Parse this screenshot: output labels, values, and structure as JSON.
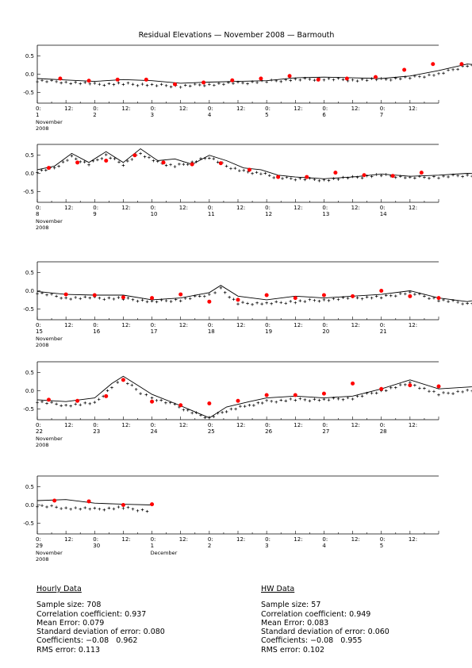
{
  "title": "Residual Elevations — November 2008 — Barmouth",
  "x_tick_labels": [
    "0:",
    "12:"
  ],
  "y_tick_labels": [
    "0.5",
    "0.0",
    "-0.5"
  ],
  "colors": {
    "observed": "#000000",
    "hw": "#ff0000",
    "background": "#ffffff"
  },
  "chart_data": [
    {
      "type": "line",
      "day_numbers": [
        "1",
        "2",
        "3",
        "4",
        "5",
        "6",
        "7"
      ],
      "month_label": "November",
      "year_label": "2008",
      "ylim": [
        -0.8,
        0.8
      ],
      "series": [],
      "model_line": [
        [
          0,
          -0.12
        ],
        [
          0.5,
          -0.16
        ],
        [
          1,
          -0.2
        ],
        [
          1.5,
          -0.15
        ],
        [
          2,
          -0.18
        ],
        [
          2.5,
          -0.25
        ],
        [
          3,
          -0.22
        ],
        [
          3.5,
          -0.2
        ],
        [
          4,
          -0.18
        ],
        [
          4.5,
          -0.1
        ],
        [
          5,
          -0.08
        ],
        [
          5.5,
          -0.1
        ],
        [
          6,
          -0.12
        ],
        [
          6.5,
          -0.05
        ],
        [
          7,
          0.1
        ],
        [
          7.5,
          0.28
        ],
        [
          8,
          0.22
        ]
      ],
      "hourly_obs": [
        [
          0,
          -0.18
        ],
        [
          0.5,
          -0.22
        ],
        [
          1,
          -0.28
        ],
        [
          1.5,
          -0.27
        ],
        [
          2,
          -0.3
        ],
        [
          2.5,
          -0.33
        ],
        [
          3,
          -0.28
        ],
        [
          3.5,
          -0.25
        ],
        [
          4,
          -0.2
        ],
        [
          4.5,
          -0.15
        ],
        [
          5,
          -0.13
        ],
        [
          5.5,
          -0.16
        ],
        [
          6,
          -0.15
        ],
        [
          6.5,
          -0.1
        ],
        [
          7,
          0.0
        ],
        [
          7.5,
          0.25
        ],
        [
          8,
          0.15
        ]
      ],
      "hw_points": [
        [
          0.4,
          -0.12
        ],
        [
          0.9,
          -0.18
        ],
        [
          1.4,
          -0.15
        ],
        [
          1.9,
          -0.15
        ],
        [
          2.4,
          -0.28
        ],
        [
          2.9,
          -0.23
        ],
        [
          3.4,
          -0.17
        ],
        [
          3.9,
          -0.12
        ],
        [
          4.4,
          -0.05
        ],
        [
          4.9,
          -0.15
        ],
        [
          5.4,
          -0.12
        ],
        [
          5.9,
          -0.08
        ],
        [
          6.4,
          0.12
        ],
        [
          6.9,
          0.28
        ],
        [
          7.4,
          0.28
        ]
      ]
    },
    {
      "type": "line",
      "day_numbers": [
        "8",
        "9",
        "10",
        "11",
        "12",
        "13",
        "14"
      ],
      "month_label": "November",
      "year_label": "2008",
      "ylim": [
        -0.8,
        0.8
      ],
      "model_line": [
        [
          0,
          0.1
        ],
        [
          0.3,
          0.2
        ],
        [
          0.6,
          0.55
        ],
        [
          0.9,
          0.3
        ],
        [
          1.2,
          0.6
        ],
        [
          1.5,
          0.3
        ],
        [
          1.8,
          0.68
        ],
        [
          2.1,
          0.35
        ],
        [
          2.4,
          0.4
        ],
        [
          2.7,
          0.25
        ],
        [
          3,
          0.5
        ],
        [
          3.3,
          0.35
        ],
        [
          3.6,
          0.15
        ],
        [
          3.9,
          0.1
        ],
        [
          4.2,
          -0.05
        ],
        [
          4.5,
          -0.1
        ],
        [
          5,
          -0.15
        ],
        [
          5.5,
          -0.1
        ],
        [
          6,
          -0.02
        ],
        [
          6.5,
          -0.08
        ],
        [
          7,
          -0.05
        ],
        [
          7.5,
          0.0
        ],
        [
          8,
          -0.03
        ]
      ],
      "hourly_obs": [
        [
          0,
          0.05
        ],
        [
          0.3,
          0.15
        ],
        [
          0.6,
          0.45
        ],
        [
          0.9,
          0.25
        ],
        [
          1.2,
          0.5
        ],
        [
          1.5,
          0.25
        ],
        [
          1.8,
          0.55
        ],
        [
          2.1,
          0.3
        ],
        [
          2.4,
          0.2
        ],
        [
          2.7,
          0.3
        ],
        [
          3,
          0.45
        ],
        [
          3.3,
          0.2
        ],
        [
          3.6,
          0.05
        ],
        [
          3.9,
          0.0
        ],
        [
          4.2,
          -0.12
        ],
        [
          4.5,
          -0.15
        ],
        [
          5,
          -0.18
        ],
        [
          5.5,
          -0.12
        ],
        [
          6,
          -0.05
        ],
        [
          6.5,
          -0.12
        ],
        [
          7,
          -0.1
        ],
        [
          7.5,
          -0.05
        ],
        [
          8,
          -0.05
        ]
      ],
      "hw_points": [
        [
          0.2,
          0.15
        ],
        [
          0.7,
          0.3
        ],
        [
          1.2,
          0.35
        ],
        [
          1.7,
          0.5
        ],
        [
          2.2,
          0.3
        ],
        [
          2.7,
          0.25
        ],
        [
          3.2,
          0.28
        ],
        [
          3.7,
          0.1
        ],
        [
          4.2,
          -0.1
        ],
        [
          4.7,
          -0.1
        ],
        [
          5.2,
          0.02
        ],
        [
          5.7,
          -0.05
        ],
        [
          6.2,
          -0.07
        ],
        [
          6.7,
          0.02
        ]
      ]
    },
    {
      "type": "line",
      "day_numbers": [
        "15",
        "16",
        "17",
        "18",
        "19",
        "20",
        "21"
      ],
      "month_label": "November",
      "year_label": "2008",
      "ylim": [
        -0.8,
        0.8
      ],
      "model_line": [
        [
          0,
          -0.02
        ],
        [
          0.5,
          -0.1
        ],
        [
          1,
          -0.12
        ],
        [
          1.5,
          -0.12
        ],
        [
          2,
          -0.25
        ],
        [
          2.5,
          -0.2
        ],
        [
          3,
          -0.05
        ],
        [
          3.2,
          0.15
        ],
        [
          3.5,
          -0.15
        ],
        [
          4,
          -0.25
        ],
        [
          4.5,
          -0.15
        ],
        [
          5,
          -0.2
        ],
        [
          5.5,
          -0.15
        ],
        [
          6,
          -0.1
        ],
        [
          6.5,
          0.0
        ],
        [
          7,
          -0.2
        ],
        [
          7.5,
          -0.3
        ],
        [
          8,
          -0.15
        ]
      ],
      "hourly_obs": [
        [
          0,
          -0.05
        ],
        [
          0.5,
          -0.2
        ],
        [
          1,
          -0.2
        ],
        [
          1.5,
          -0.22
        ],
        [
          2,
          -0.3
        ],
        [
          2.5,
          -0.25
        ],
        [
          3,
          -0.1
        ],
        [
          3.2,
          0.05
        ],
        [
          3.5,
          -0.35
        ],
        [
          4,
          -0.35
        ],
        [
          4.5,
          -0.3
        ],
        [
          5,
          -0.25
        ],
        [
          5.5,
          -0.2
        ],
        [
          6,
          -0.18
        ],
        [
          6.5,
          -0.05
        ],
        [
          7,
          -0.25
        ],
        [
          7.5,
          -0.35
        ],
        [
          8,
          -0.2
        ]
      ],
      "hw_points": [
        [
          0.5,
          -0.1
        ],
        [
          1,
          -0.12
        ],
        [
          1.5,
          -0.18
        ],
        [
          2,
          -0.2
        ],
        [
          2.5,
          -0.1
        ],
        [
          3,
          -0.3
        ],
        [
          3.5,
          -0.25
        ],
        [
          4,
          -0.12
        ],
        [
          4.5,
          -0.2
        ],
        [
          5,
          -0.12
        ],
        [
          5.5,
          -0.15
        ],
        [
          6,
          0.0
        ],
        [
          6.5,
          -0.15
        ],
        [
          7,
          -0.2
        ]
      ]
    },
    {
      "type": "line",
      "day_numbers": [
        "22",
        "23",
        "24",
        "25",
        "26",
        "27",
        "28"
      ],
      "month_label": "November",
      "year_label": "2008",
      "ylim": [
        -0.8,
        0.8
      ],
      "model_line": [
        [
          0,
          -0.25
        ],
        [
          0.5,
          -0.3
        ],
        [
          1,
          -0.2
        ],
        [
          1.3,
          0.2
        ],
        [
          1.5,
          0.4
        ],
        [
          1.8,
          0.1
        ],
        [
          2,
          -0.1
        ],
        [
          2.4,
          -0.35
        ],
        [
          2.7,
          -0.55
        ],
        [
          3,
          -0.75
        ],
        [
          3.3,
          -0.45
        ],
        [
          3.7,
          -0.3
        ],
        [
          4,
          -0.2
        ],
        [
          4.5,
          -0.15
        ],
        [
          5,
          -0.2
        ],
        [
          5.5,
          -0.15
        ],
        [
          6,
          0.05
        ],
        [
          6.5,
          0.3
        ],
        [
          7,
          0.05
        ],
        [
          7.5,
          0.1
        ],
        [
          8,
          0.15
        ]
      ],
      "hourly_obs": [
        [
          0,
          -0.3
        ],
        [
          0.5,
          -0.4
        ],
        [
          1,
          -0.35
        ],
        [
          1.3,
          0.1
        ],
        [
          1.5,
          0.3
        ],
        [
          1.8,
          -0.05
        ],
        [
          2,
          -0.2
        ],
        [
          2.4,
          -0.4
        ],
        [
          2.7,
          -0.6
        ],
        [
          3,
          -0.75
        ],
        [
          3.3,
          -0.55
        ],
        [
          3.7,
          -0.4
        ],
        [
          4,
          -0.3
        ],
        [
          4.5,
          -0.25
        ],
        [
          5,
          -0.25
        ],
        [
          5.5,
          -0.2
        ],
        [
          6,
          0.0
        ],
        [
          6.5,
          0.2
        ],
        [
          7,
          -0.1
        ],
        [
          7.5,
          0.0
        ],
        [
          8,
          0.05
        ]
      ],
      "hw_points": [
        [
          0.2,
          -0.25
        ],
        [
          0.7,
          -0.28
        ],
        [
          1.2,
          -0.15
        ],
        [
          1.5,
          0.3
        ],
        [
          2,
          -0.3
        ],
        [
          2.5,
          -0.4
        ],
        [
          3,
          -0.35
        ],
        [
          3.5,
          -0.28
        ],
        [
          4,
          -0.12
        ],
        [
          4.5,
          -0.12
        ],
        [
          5,
          -0.08
        ],
        [
          5.5,
          0.2
        ],
        [
          6,
          0.05
        ],
        [
          6.5,
          0.15
        ],
        [
          7,
          0.12
        ]
      ]
    },
    {
      "type": "line",
      "day_numbers": [
        "29",
        "30",
        "1",
        "2",
        "3",
        "4",
        "5"
      ],
      "month_label": "November",
      "year_label": "2008",
      "next_month_label": "December",
      "ylim": [
        -0.8,
        0.8
      ],
      "model_line": [
        [
          0,
          0.12
        ],
        [
          0.5,
          0.15
        ],
        [
          1,
          0.05
        ],
        [
          1.5,
          0.02
        ],
        [
          2,
          0.0
        ]
      ],
      "hourly_obs": [
        [
          0,
          -0.02
        ],
        [
          0.5,
          -0.08
        ],
        [
          1,
          -0.12
        ],
        [
          1.5,
          -0.08
        ],
        [
          2,
          -0.18
        ]
      ],
      "hw_points": [
        [
          0.3,
          0.12
        ],
        [
          0.9,
          0.1
        ],
        [
          1.5,
          0.0
        ],
        [
          2.0,
          0.02
        ]
      ]
    }
  ],
  "stats": {
    "hourly": {
      "heading": "Hourly Data",
      "lines": [
        "Sample size: 708",
        "Correlation coefficient: 0.937",
        "Mean Error: 0.079",
        "Standard deviation of error: 0.080",
        "Coefficients: −0.08   0.962",
        "RMS error: 0.113"
      ]
    },
    "hw": {
      "heading": "HW Data",
      "lines": [
        "Sample size: 57",
        "Correlation coefficient: 0.949",
        "Mean Error: 0.083",
        "Standard deviation of error: 0.060",
        "Coefficients: −0.08   0.955",
        "RMS error: 0.102"
      ]
    }
  }
}
